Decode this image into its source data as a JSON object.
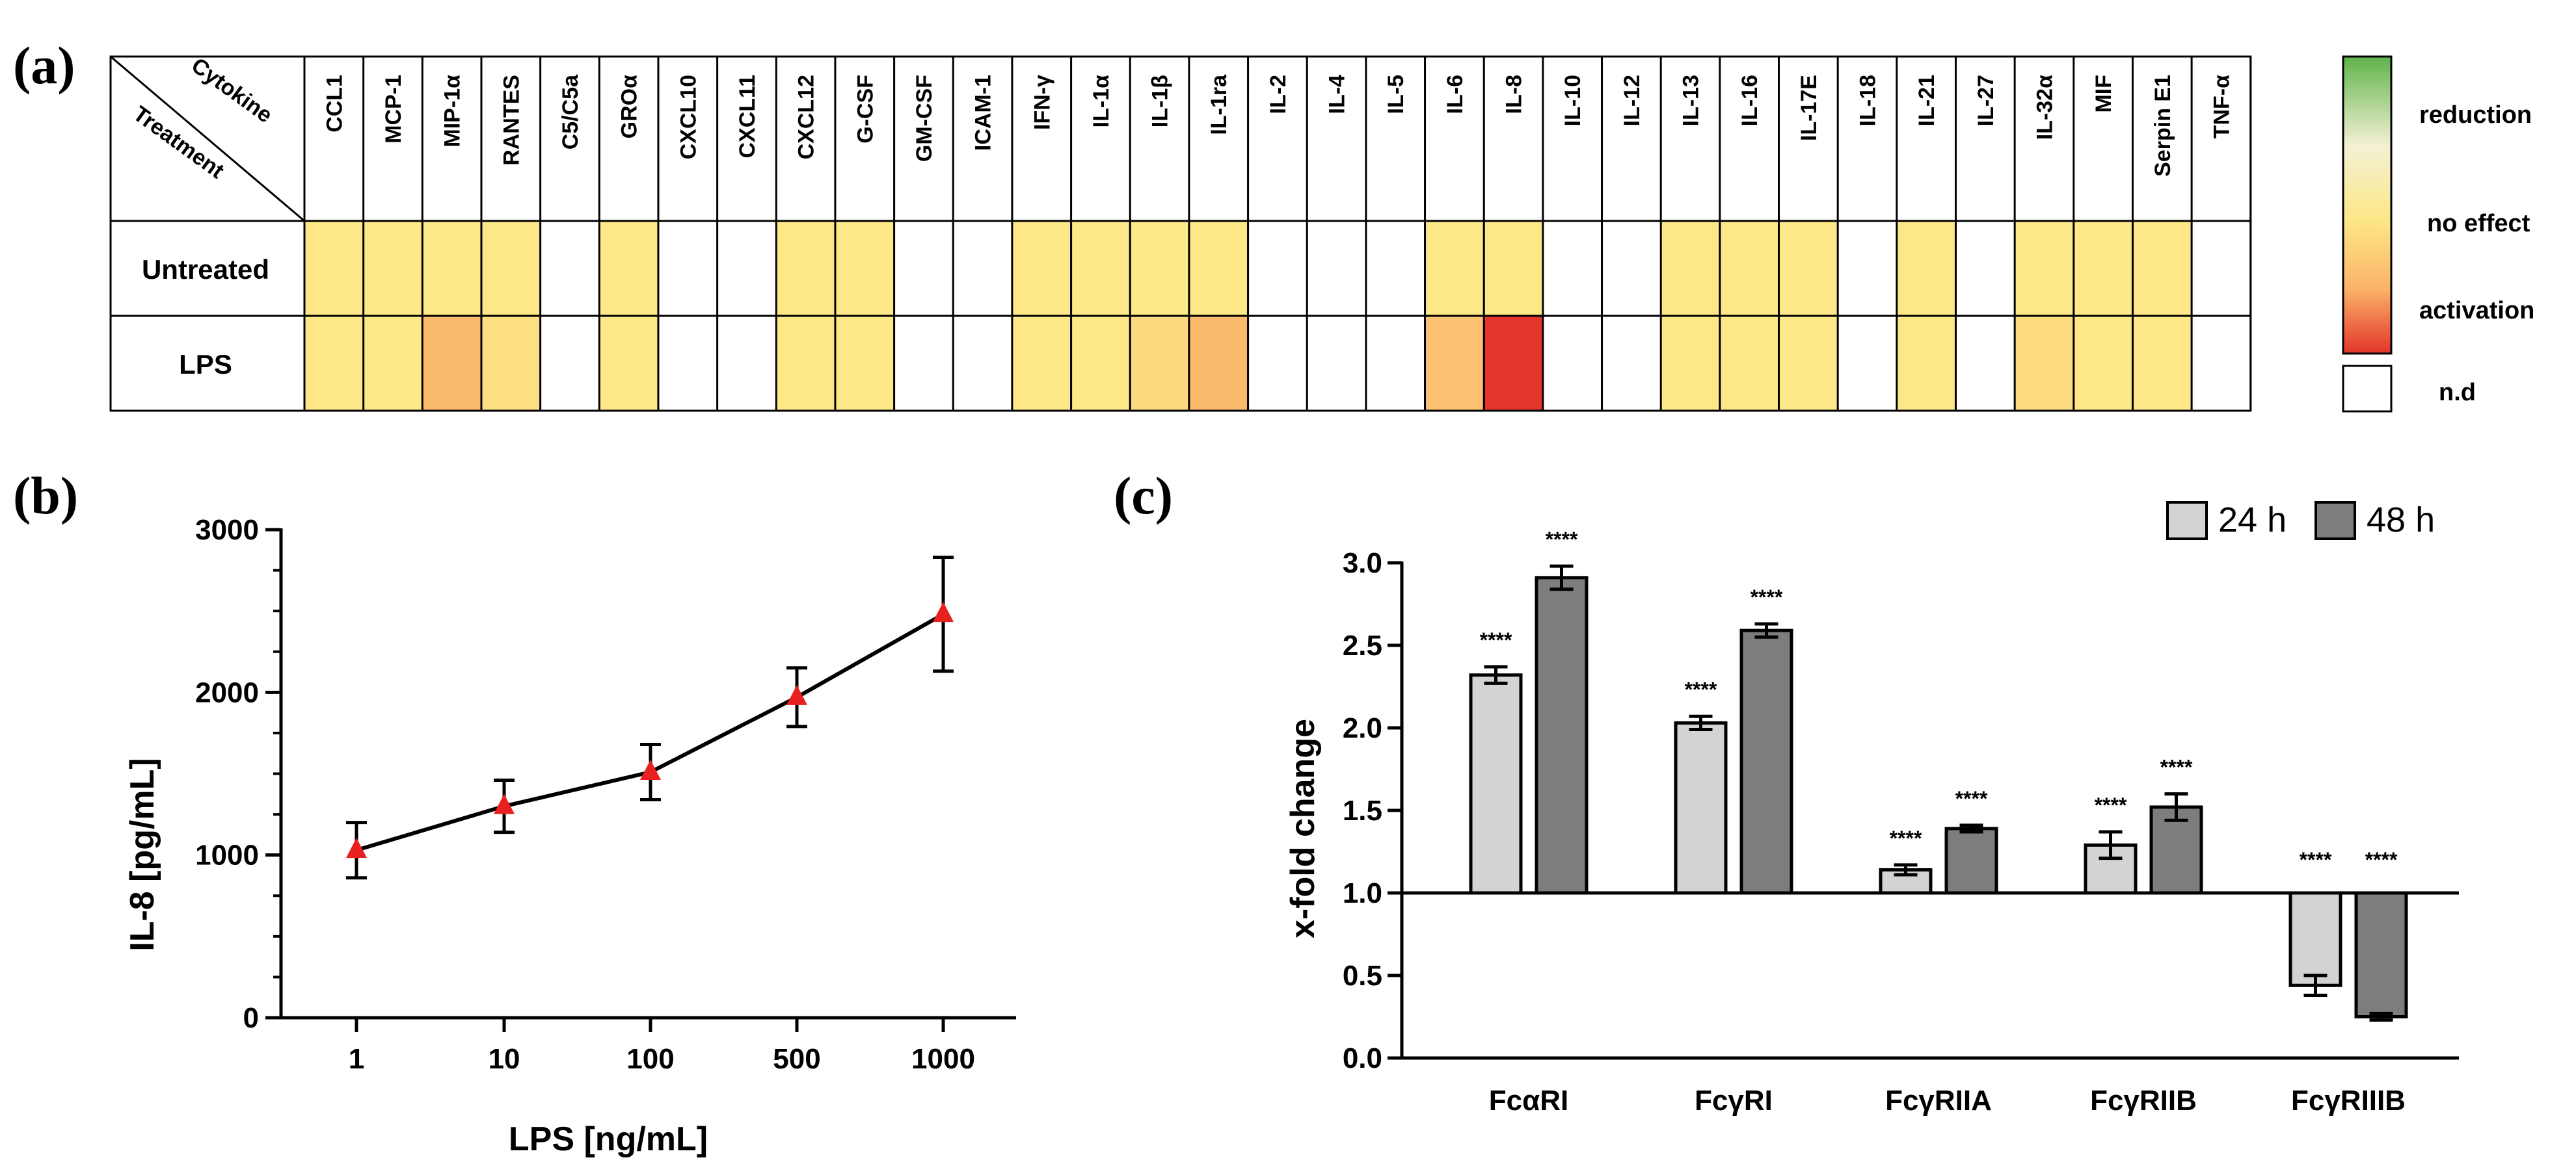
{
  "colors": {
    "reduction": "#5fb34a",
    "neutral": "#f3f1d4",
    "no_effect": "#fde787",
    "mild": "#fbb468",
    "activation": "#e3352b",
    "nd": "#ffffff",
    "marker": "#e8201f",
    "bar_24h": "#d3d3d3",
    "bar_48h": "#7d7d7d",
    "line": "#000000"
  },
  "chart_data": [
    {
      "type": "heatmap",
      "panel": "(a)",
      "corner_col_label": "Cytokine",
      "corner_row_label": "Treatment",
      "columns": [
        "CCL1",
        "MCP-1",
        "MIP-1α",
        "RANTES",
        "C5/C5a",
        "GROα",
        "CXCL10",
        "CXCL11",
        "CXCL12",
        "G-CSF",
        "GM-CSF",
        "ICAM-1",
        "IFN-γ",
        "IL-1α",
        "IL-1β",
        "IL-1ra",
        "IL-2",
        "IL-4",
        "IL-5",
        "IL-6",
        "IL-8",
        "IL-10",
        "IL-12",
        "IL-13",
        "IL-16",
        "IL-17E",
        "IL-18",
        "IL-21",
        "IL-27",
        "IL-32α",
        "MIF",
        "Serpin E1",
        "TNF-α"
      ],
      "rows": [
        "Untreated",
        "LPS"
      ],
      "values": [
        [
          "no_effect",
          "no_effect",
          "no_effect",
          "no_effect",
          "nd",
          "no_effect",
          "nd",
          "nd",
          "no_effect",
          "no_effect",
          "nd",
          "nd",
          "no_effect",
          "no_effect",
          "no_effect",
          "no_effect",
          "nd",
          "nd",
          "nd",
          "no_effect",
          "no_effect",
          "nd",
          "nd",
          "no_effect",
          "no_effect",
          "no_effect",
          "nd",
          "no_effect",
          "nd",
          "no_effect",
          "no_effect",
          "no_effect",
          "nd"
        ],
        [
          "no_effect",
          "no_effect",
          "mild",
          "no_effect",
          "nd",
          "no_effect",
          "nd",
          "nd",
          "no_effect",
          "no_effect",
          "nd",
          "nd",
          "no_effect",
          "no_effect",
          "no_effect",
          "mild",
          "nd",
          "nd",
          "nd",
          "mild",
          "activation",
          "nd",
          "nd",
          "no_effect",
          "no_effect",
          "no_effect",
          "nd",
          "no_effect",
          "nd",
          "no_effect",
          "no_effect",
          "no_effect",
          "nd"
        ]
      ],
      "cell_intensity": [
        [
          0.5,
          0.5,
          0.5,
          0.5,
          null,
          0.5,
          null,
          null,
          0.5,
          0.5,
          null,
          null,
          0.5,
          0.5,
          0.5,
          0.5,
          null,
          null,
          null,
          0.5,
          0.5,
          null,
          null,
          0.5,
          0.5,
          0.5,
          null,
          0.5,
          null,
          0.5,
          0.5,
          0.5,
          null
        ],
        [
          0.5,
          0.5,
          0.72,
          0.55,
          null,
          0.5,
          null,
          null,
          0.5,
          0.5,
          null,
          null,
          0.5,
          0.5,
          0.58,
          0.72,
          null,
          null,
          null,
          0.68,
          1.0,
          null,
          null,
          0.5,
          0.5,
          0.5,
          null,
          0.5,
          null,
          0.56,
          0.5,
          0.5,
          null
        ]
      ],
      "legend": {
        "labels": [
          "reduction",
          "no effect",
          "activation"
        ],
        "nd_label": "n.d"
      }
    },
    {
      "type": "line",
      "panel": "(b)",
      "categories": [
        "1",
        "10",
        "100",
        "500",
        "1000"
      ],
      "values": [
        1030,
        1300,
        1510,
        1970,
        2480
      ],
      "errors": [
        170,
        160,
        170,
        180,
        350
      ],
      "xlabel": "LPS [ng/mL]",
      "ylabel": "IL-8 [pg/mL]",
      "ylim": [
        0,
        3000
      ],
      "yticks": [
        "0",
        "1000",
        "2000",
        "3000"
      ]
    },
    {
      "type": "bar",
      "panel": "(c)",
      "categories": [
        "FcαRI",
        "FcγRI",
        "FcγRIIA",
        "FcγRIIB",
        "FcγRIIIB"
      ],
      "series": [
        {
          "name": "24 h",
          "values": [
            2.32,
            2.03,
            1.14,
            1.29,
            0.44
          ],
          "errors": [
            0.05,
            0.04,
            0.03,
            0.08,
            0.06
          ],
          "significance": [
            "****",
            "****",
            "****",
            "****",
            "****"
          ]
        },
        {
          "name": "48 h",
          "values": [
            2.91,
            2.59,
            1.39,
            1.52,
            0.25
          ],
          "errors": [
            0.07,
            0.04,
            0.02,
            0.08,
            0.02
          ],
          "significance": [
            "****",
            "****",
            "****",
            "****",
            "****"
          ]
        }
      ],
      "baseline": 1.0,
      "ylabel": "x-fold change",
      "ylim": [
        0,
        3.0
      ],
      "yticks": [
        "0.0",
        "0.5",
        "1.0",
        "1.5",
        "2.0",
        "2.5",
        "3.0"
      ],
      "legend": "top-right"
    }
  ]
}
